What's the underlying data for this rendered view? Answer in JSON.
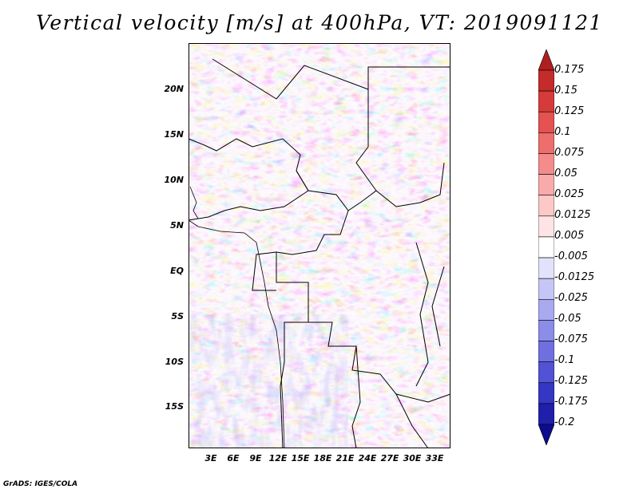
{
  "title": "Vertical velocity [m/s] at 400hPa, VT: 2019091121",
  "credit": "GrADS: IGES/COLA",
  "map": {
    "lat_labels": [
      "20N",
      "15N",
      "10N",
      "5N",
      "EQ",
      "5S",
      "10S",
      "15S"
    ],
    "lon_labels": [
      "3E",
      "6E",
      "9E",
      "12E",
      "15E",
      "18E",
      "21E",
      "24E",
      "27E",
      "30E",
      "33E"
    ],
    "lon_range_deg": [
      0,
      35
    ],
    "lat_range_deg": [
      -20,
      25
    ]
  },
  "colorbar": {
    "levels": [
      "0.175",
      "0.15",
      "0.125",
      "0.1",
      "0.075",
      "0.05",
      "0.025",
      "0.0125",
      "0.005",
      "-0.005",
      "-0.0125",
      "-0.025",
      "-0.05",
      "-0.075",
      "-0.1",
      "-0.125",
      "-0.175",
      "-0.2"
    ],
    "colors": [
      "#b01f1f",
      "#c42b2b",
      "#d63b3b",
      "#e45252",
      "#ee6d6d",
      "#f48c8c",
      "#f9aaaa",
      "#fcc8c8",
      "#fee4e4",
      "#ffffff",
      "#e2e2fb",
      "#c6c6f6",
      "#a9a9f0",
      "#8c8ce9",
      "#6f6fe0",
      "#5252d4",
      "#3636c4",
      "#1f1faa",
      "#0c0c8e"
    ]
  }
}
